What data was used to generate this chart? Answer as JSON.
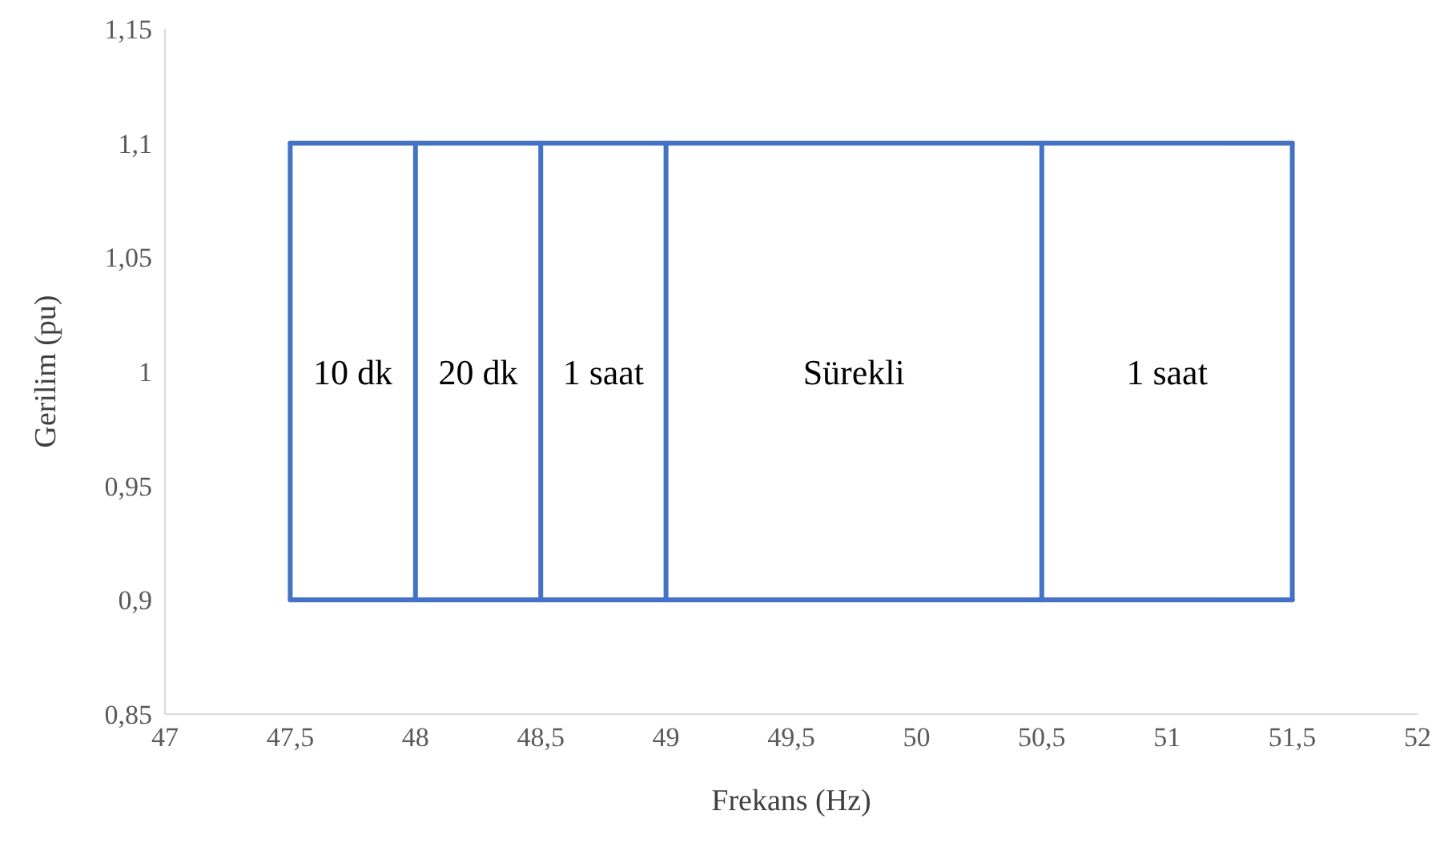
{
  "chart_data": {
    "type": "line",
    "xlabel": "Frekans (Hz)",
    "ylabel": "Gerilim (pu)",
    "series": [
      {
        "color": "#4472c4",
        "x": [
          47.5,
          51.5
        ],
        "values": [
          1.1,
          1.1
        ]
      },
      {
        "color": "#4472c4",
        "x": [
          47.5,
          51.5
        ],
        "values": [
          0.9,
          0.9
        ]
      },
      {
        "color": "#4472c4",
        "x": [
          47.5,
          47.5
        ],
        "values": [
          0.9,
          1.1
        ]
      },
      {
        "color": "#4472c4",
        "x": [
          48,
          48
        ],
        "values": [
          0.9,
          1.1
        ]
      },
      {
        "color": "#4472c4",
        "x": [
          48.5,
          48.5
        ],
        "values": [
          0.9,
          1.1
        ]
      },
      {
        "color": "#4472c4",
        "x": [
          49,
          49
        ],
        "values": [
          0.9,
          1.1
        ]
      },
      {
        "color": "#4472c4",
        "x": [
          50.5,
          50.5
        ],
        "values": [
          0.9,
          1.1
        ]
      },
      {
        "color": "#4472c4",
        "x": [
          51.5,
          51.5
        ],
        "values": [
          0.9,
          1.1
        ]
      }
    ],
    "xlim": [
      47,
      52
    ],
    "xticks": [
      47,
      {
        "value": 47.5,
        "label": "47,5"
      },
      48,
      {
        "value": 48.5,
        "label": "48,5"
      },
      49,
      {
        "value": 49.5,
        "label": "49,5"
      },
      50,
      {
        "value": 50.5,
        "label": "50,5"
      },
      51,
      {
        "value": 51.5,
        "label": "51,5"
      },
      52
    ],
    "ylim": [
      0.85,
      1.15
    ],
    "yticks": [
      {
        "value": 0.85,
        "label": "0,85"
      },
      {
        "value": 0.9,
        "label": "0,9"
      },
      {
        "value": 0.95,
        "label": "0,95"
      },
      1,
      {
        "value": 1.05,
        "label": "1,05"
      },
      {
        "value": 1.1,
        "label": "1,1"
      },
      {
        "value": 1.15,
        "label": "1,15"
      }
    ],
    "annotations": [
      "10 dk",
      "20 dk",
      "1 saat",
      "Sürekli",
      "1 saat"
    ],
    "grid": false,
    "marker": "none",
    "line_style": "solid"
  }
}
